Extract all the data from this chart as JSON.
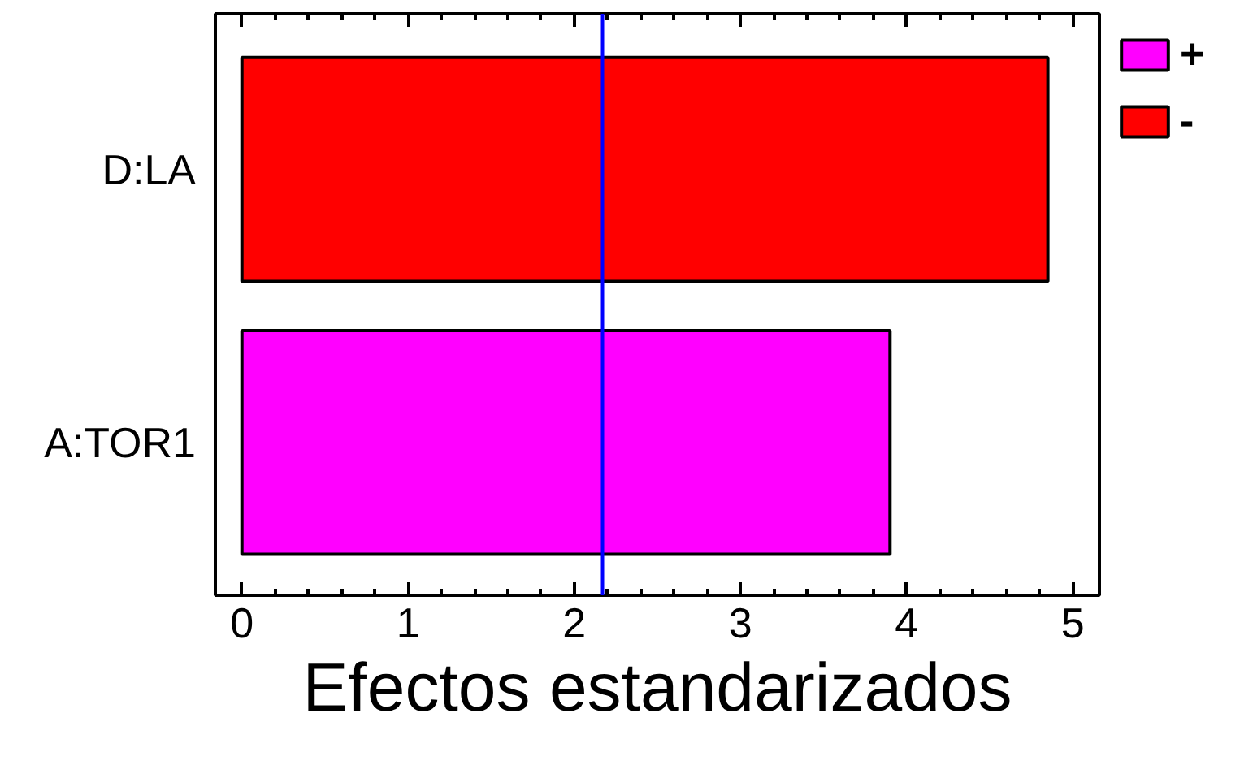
{
  "chart_data": {
    "type": "bar",
    "orientation": "horizontal",
    "xlabel": "Efectos estandarizados",
    "categories": [
      "D:LA",
      "A:TOR1"
    ],
    "series": [
      {
        "name": "+",
        "color": "#ff00ff",
        "values": [
          null,
          3.9
        ]
      },
      {
        "name": "-",
        "color": "#ff0000",
        "values": [
          4.85,
          null
        ]
      }
    ],
    "xlim": [
      -0.16,
      5.16
    ],
    "xticks": [
      0,
      1,
      2,
      3,
      4,
      5
    ],
    "ref_lines": [
      {
        "axis": "x",
        "value": 2.17,
        "color": "#0000ff"
      }
    ],
    "grid": false,
    "legend": "top right"
  }
}
